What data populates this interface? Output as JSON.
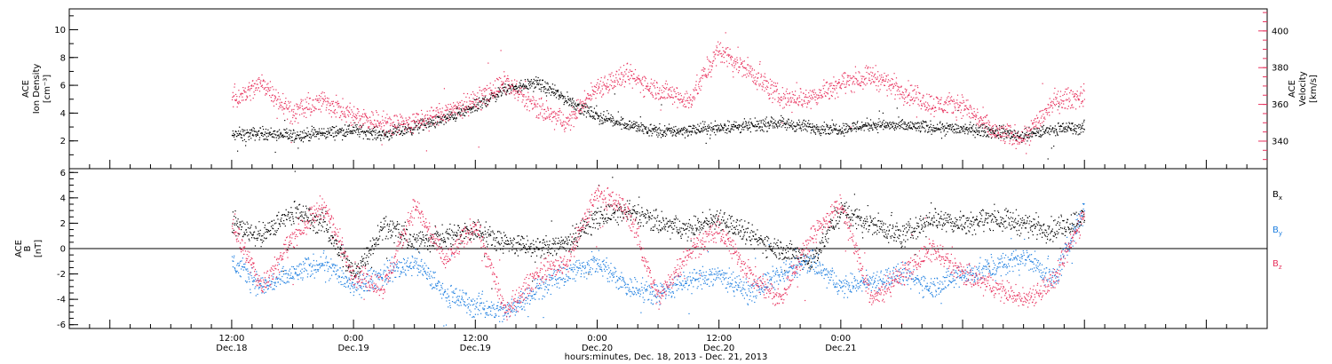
{
  "chart_data": [
    {
      "type": "scatter",
      "panel": "top",
      "ylabel_left": [
        "ACE",
        "Ion Density",
        "[cm⁻³]"
      ],
      "ylabel_right": [
        "ACE",
        "Velocity",
        "[km/s]"
      ],
      "ylim_left": [
        0,
        11.5
      ],
      "ylim_right": [
        325,
        412
      ],
      "yticks_left": [
        2,
        4,
        6,
        8,
        10
      ],
      "yticks_right": [
        340,
        360,
        380,
        400
      ],
      "grid": false,
      "series": [
        {
          "name": "Ion Density",
          "axis": "left",
          "color": "#000000",
          "x": [
            0,
            3,
            6,
            9,
            12,
            15,
            18,
            21,
            24,
            27,
            30,
            33,
            36,
            39,
            42,
            45,
            48,
            51,
            54,
            57,
            60,
            63,
            66,
            69,
            72,
            75,
            78,
            81,
            84
          ],
          "values": [
            2.4,
            2.6,
            2.4,
            2.6,
            2.8,
            2.5,
            3.0,
            3.6,
            4.5,
            5.8,
            6.2,
            5.0,
            3.8,
            3.2,
            2.7,
            2.8,
            3.0,
            3.1,
            3.3,
            3.0,
            2.9,
            3.2,
            3.1,
            3.0,
            2.9,
            2.7,
            2.4,
            2.9,
            3.0
          ]
        },
        {
          "name": "Velocity",
          "axis": "right",
          "color": "#e8325e",
          "x": [
            0,
            3,
            6,
            9,
            12,
            15,
            18,
            21,
            24,
            27,
            30,
            33,
            36,
            39,
            42,
            45,
            48,
            51,
            54,
            57,
            60,
            63,
            66,
            69,
            72,
            75,
            78,
            81,
            84
          ],
          "values": [
            362,
            372,
            356,
            362,
            354,
            350,
            350,
            356,
            362,
            372,
            358,
            350,
            370,
            376,
            368,
            362,
            390,
            378,
            364,
            364,
            372,
            376,
            368,
            360,
            360,
            345,
            342,
            362,
            365
          ]
        }
      ]
    },
    {
      "type": "scatter",
      "panel": "bottom",
      "ylabel": [
        "ACE",
        "B",
        "[nT]"
      ],
      "ylim": [
        -6.3,
        6.3
      ],
      "yticks": [
        -6,
        -4,
        -2,
        0,
        2,
        4,
        6
      ],
      "zero_line": true,
      "legend_position": "right",
      "series": [
        {
          "name": "Bx",
          "color": "#000000",
          "x": [
            0,
            3,
            6,
            9,
            12,
            15,
            18,
            21,
            24,
            27,
            30,
            33,
            36,
            39,
            42,
            45,
            48,
            51,
            54,
            57,
            60,
            63,
            66,
            69,
            72,
            75,
            78,
            81,
            84
          ],
          "values": [
            2.0,
            1.0,
            3.0,
            2.0,
            -2.0,
            2.0,
            0.5,
            1.0,
            1.5,
            0.5,
            0.0,
            0.5,
            2.5,
            3.0,
            2.0,
            1.5,
            2.5,
            1.0,
            0.0,
            -1.0,
            3.0,
            2.0,
            1.0,
            2.5,
            2.0,
            2.5,
            2.0,
            1.5,
            2.5
          ]
        },
        {
          "name": "By",
          "color": "#1f7fe0",
          "x": [
            0,
            3,
            6,
            9,
            12,
            15,
            18,
            21,
            24,
            27,
            30,
            33,
            36,
            39,
            42,
            45,
            48,
            51,
            54,
            57,
            60,
            63,
            66,
            69,
            72,
            75,
            78,
            81,
            84
          ],
          "values": [
            -1.0,
            -3.0,
            -2.0,
            -1.0,
            -3.0,
            -2.0,
            -1.0,
            -3.5,
            -4.5,
            -5.0,
            -3.0,
            -2.0,
            -1.0,
            -3.0,
            -3.5,
            -2.5,
            -2.0,
            -3.5,
            -2.0,
            -1.0,
            -3.0,
            -2.5,
            -2.0,
            -3.0,
            -2.0,
            -1.5,
            -0.5,
            -2.5,
            3.5
          ]
        },
        {
          "name": "Bz",
          "color": "#e8325e",
          "x": [
            0,
            3,
            6,
            9,
            12,
            15,
            18,
            21,
            24,
            27,
            30,
            33,
            36,
            39,
            42,
            45,
            48,
            51,
            54,
            57,
            60,
            63,
            66,
            69,
            72,
            75,
            78,
            81,
            84
          ],
          "values": [
            2.0,
            -3.0,
            1.0,
            3.5,
            -2.0,
            -3.0,
            3.5,
            -1.0,
            2.0,
            -5.0,
            -2.0,
            -1.0,
            4.5,
            3.0,
            -4.0,
            0.0,
            1.5,
            -2.0,
            -4.0,
            1.0,
            3.5,
            -4.0,
            -2.0,
            0.0,
            -2.0,
            -3.0,
            -4.0,
            -2.5,
            3.0
          ]
        }
      ]
    }
  ],
  "x_axis": {
    "range_hours": [
      -16,
      102
    ],
    "major_ticks": [
      {
        "x": 0,
        "time": "12:00",
        "date": "Dec.18"
      },
      {
        "x": 12,
        "time": "0:00",
        "date": "Dec.19"
      },
      {
        "x": 24,
        "time": "12:00",
        "date": "Dec.19"
      },
      {
        "x": 36,
        "time": "0:00",
        "date": "Dec.20"
      },
      {
        "x": 48,
        "time": "12:00",
        "date": "Dec.20"
      },
      {
        "x": 60,
        "time": "0:00",
        "date": "Dec.21"
      }
    ],
    "title": "hours:minutes, Dec. 18, 2013 - Dec. 21, 2013"
  },
  "legend": {
    "bx": {
      "base": "B",
      "sub": "x"
    },
    "by": {
      "base": "B",
      "sub": "y"
    },
    "bz": {
      "base": "B",
      "sub": "z"
    }
  }
}
